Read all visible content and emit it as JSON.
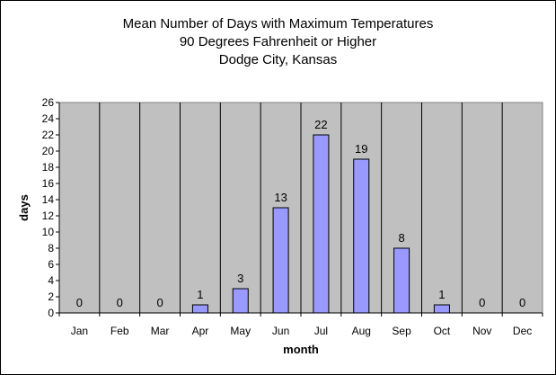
{
  "chart_data": {
    "type": "bar",
    "title_lines": [
      "Mean Number of Days with Maximum Temperatures",
      "90 Degrees Fahrenheit or Higher",
      "Dodge City, Kansas"
    ],
    "xlabel": "month",
    "ylabel": "days",
    "categories": [
      "Jan",
      "Feb",
      "Mar",
      "Apr",
      "May",
      "Jun",
      "Jul",
      "Aug",
      "Sep",
      "Oct",
      "Nov",
      "Dec"
    ],
    "values": [
      0,
      0,
      0,
      1,
      3,
      13,
      22,
      19,
      8,
      1,
      0,
      0
    ],
    "ylim": [
      0,
      26
    ],
    "yticks": [
      0,
      2,
      4,
      6,
      8,
      10,
      12,
      14,
      16,
      18,
      20,
      22,
      24,
      26
    ],
    "data_labels": true,
    "grid": "vertical",
    "legend": "none",
    "colors": {
      "plot_background": "#c0c0c0",
      "bar_fill": "#9999ff",
      "bar_stroke": "#000000"
    }
  }
}
